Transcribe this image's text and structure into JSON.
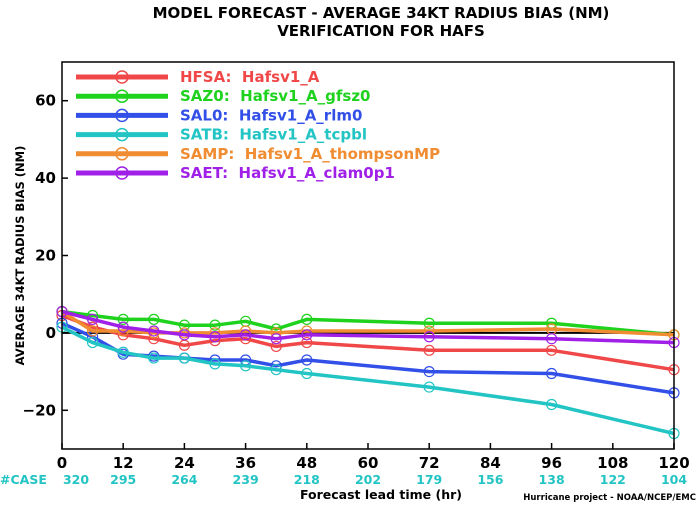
{
  "chart_data": {
    "type": "line",
    "title": "MODEL FORECAST - AVERAGE 34KT RADIUS BIAS (NM)",
    "subtitle": "VERIFICATION FOR HAFS",
    "xlabel": "Forecast lead time (hr)",
    "ylabel": "AVERAGE 34KT RADIUS BIAS (NM)",
    "xlim": [
      0,
      120
    ],
    "ylim": [
      -30,
      70
    ],
    "x_ticks": [
      0,
      12,
      24,
      36,
      48,
      60,
      72,
      84,
      96,
      108,
      120
    ],
    "y_ticks": [
      -20,
      0,
      20,
      40,
      60
    ],
    "y_tick_labels": [
      "−20",
      "0",
      "20",
      "40",
      "60"
    ],
    "grid": false,
    "legend_position": "top-left",
    "zero_line": true,
    "case_label": "#CASE",
    "case_counts": [
      {
        "x": 0,
        "n": "320"
      },
      {
        "x": 12,
        "n": "295"
      },
      {
        "x": 24,
        "n": "264"
      },
      {
        "x": 36,
        "n": "239"
      },
      {
        "x": 48,
        "n": "218"
      },
      {
        "x": 60,
        "n": "202"
      },
      {
        "x": 72,
        "n": "179"
      },
      {
        "x": 84,
        "n": "156"
      },
      {
        "x": 96,
        "n": "138"
      },
      {
        "x": 108,
        "n": "122"
      },
      {
        "x": 120,
        "n": "104"
      }
    ],
    "credit": "Hurricane project - NOAA/NCEP/EMC",
    "case_color": "#22c4c4",
    "series": [
      {
        "name": "HFSA:  Hafsv1_A",
        "color": "#f04848",
        "x": [
          0,
          6,
          12,
          18,
          24,
          30,
          36,
          42,
          48,
          72,
          96,
          120
        ],
        "y": [
          4.5,
          1.5,
          -0.5,
          -1.5,
          -3.2,
          -2.0,
          -1.5,
          -3.5,
          -2.5,
          -4.5,
          -4.5,
          -9.5
        ]
      },
      {
        "name": "SAZ0:  Hafsv1_A_gfsz0",
        "color": "#1ed21e",
        "x": [
          0,
          6,
          12,
          18,
          24,
          30,
          36,
          42,
          48,
          72,
          96,
          120
        ],
        "y": [
          5.5,
          4.5,
          3.5,
          3.5,
          2.0,
          2.0,
          3.0,
          1.0,
          3.5,
          2.5,
          2.5,
          -0.5
        ]
      },
      {
        "name": "SAL0:  Hafsv1_A_rlm0",
        "color": "#3250e8",
        "x": [
          0,
          6,
          12,
          18,
          24,
          30,
          36,
          42,
          48,
          72,
          96,
          120
        ],
        "y": [
          2.5,
          -1.0,
          -5.5,
          -6.0,
          -6.5,
          -7.0,
          -7.0,
          -8.5,
          -7.0,
          -10.0,
          -10.5,
          -15.5
        ]
      },
      {
        "name": "SATB:  Hafsv1_A_tcpbl",
        "color": "#22c4c4",
        "x": [
          0,
          6,
          12,
          18,
          24,
          30,
          36,
          42,
          48,
          72,
          96,
          120
        ],
        "y": [
          1.5,
          -2.5,
          -5.0,
          -6.5,
          -6.5,
          -8.0,
          -8.5,
          -9.5,
          -10.5,
          -14.0,
          -18.5,
          -26.0
        ]
      },
      {
        "name": "SAMP:  Hafsv1_A_thompsonMP",
        "color": "#f08c32",
        "x": [
          0,
          6,
          12,
          18,
          24,
          30,
          36,
          42,
          48,
          72,
          96,
          120
        ],
        "y": [
          5.5,
          0.5,
          0.5,
          0.0,
          0.0,
          0.0,
          0.5,
          0.0,
          0.5,
          0.5,
          1.0,
          -0.5
        ]
      },
      {
        "name": "SAET:  Hafsv1_A_clam0p1",
        "color": "#a020e8",
        "x": [
          0,
          6,
          12,
          18,
          24,
          30,
          36,
          42,
          48,
          72,
          96,
          120
        ],
        "y": [
          5.5,
          3.5,
          1.5,
          0.5,
          -0.5,
          -1.0,
          -0.5,
          -1.5,
          -0.5,
          -1.0,
          -1.5,
          -2.5
        ]
      }
    ]
  }
}
